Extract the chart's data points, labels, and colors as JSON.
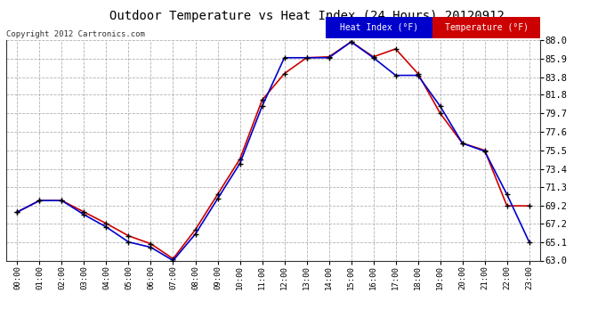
{
  "title": "Outdoor Temperature vs Heat Index (24 Hours) 20120912",
  "copyright": "Copyright 2012 Cartronics.com",
  "legend_heat": "Heat Index (°F)",
  "legend_temp": "Temperature (°F)",
  "background_color": "#ffffff",
  "plot_bg_color": "#ffffff",
  "ylim": [
    63.0,
    88.0
  ],
  "yticks": [
    63.0,
    65.1,
    67.2,
    69.2,
    71.3,
    73.4,
    75.5,
    77.6,
    79.7,
    81.8,
    83.8,
    85.9,
    88.0
  ],
  "hours": [
    "00:00",
    "01:00",
    "02:00",
    "03:00",
    "04:00",
    "05:00",
    "06:00",
    "07:00",
    "08:00",
    "09:00",
    "10:00",
    "11:00",
    "12:00",
    "13:00",
    "14:00",
    "15:00",
    "16:00",
    "17:00",
    "18:00",
    "19:00",
    "20:00",
    "21:00",
    "22:00",
    "23:00"
  ],
  "temperature": [
    68.5,
    69.8,
    69.8,
    68.5,
    67.2,
    65.8,
    64.9,
    63.2,
    66.5,
    70.5,
    74.5,
    81.2,
    84.2,
    86.0,
    86.1,
    87.8,
    86.1,
    87.0,
    84.2,
    79.7,
    76.3,
    75.5,
    69.2,
    69.2
  ],
  "heat_index": [
    68.5,
    69.8,
    69.8,
    68.2,
    66.8,
    65.1,
    64.5,
    63.0,
    66.0,
    70.0,
    74.0,
    80.5,
    86.0,
    86.0,
    86.0,
    87.8,
    86.0,
    84.0,
    84.0,
    80.5,
    76.3,
    75.4,
    70.5,
    65.1
  ],
  "temp_color": "#cc0000",
  "heat_color": "#0000cc",
  "grid_color": "#aaaaaa",
  "marker_color": "#000000",
  "heat_legend_bg": "#0000cc",
  "temp_legend_bg": "#cc0000",
  "legend_text_color": "#ffffff"
}
